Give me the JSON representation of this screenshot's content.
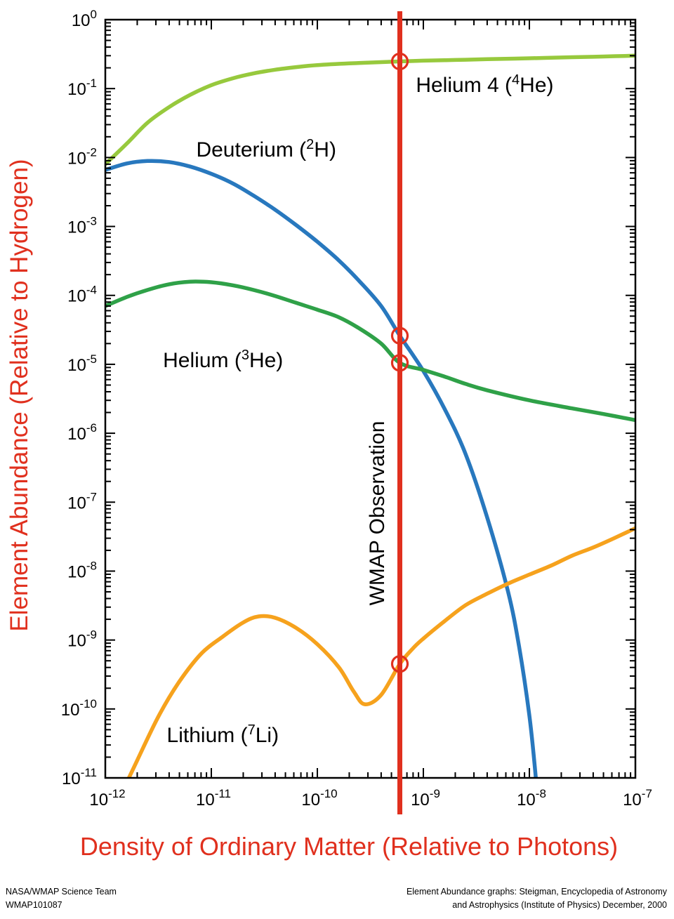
{
  "chart_data": {
    "type": "line",
    "title": "",
    "xlabel": "Density of Ordinary Matter (Relative to Photons)",
    "ylabel": "Element Abundance (Relative to Hydrogen)",
    "axis_label_color": "#e0301e",
    "x_scale": "log",
    "y_scale": "log",
    "xlim": [
      1e-12,
      1e-07
    ],
    "ylim": [
      1e-11,
      1
    ],
    "grid": false,
    "legend": "inline-labels",
    "x_tick_exponents": [
      -12,
      -11,
      -10,
      -9,
      -8,
      -7
    ],
    "y_tick_exponents": [
      0,
      -1,
      -2,
      -3,
      -4,
      -5,
      -6,
      -7,
      -8,
      -9,
      -10,
      -11
    ],
    "series": [
      {
        "id": "helium-4",
        "name": "Helium 4 (4He)",
        "color": "#97c93d",
        "points": [
          [
            1e-12,
            0.008
          ],
          [
            1.6e-12,
            0.016
          ],
          [
            2.5e-12,
            0.032
          ],
          [
            4e-12,
            0.054
          ],
          [
            6.3e-12,
            0.081
          ],
          [
            1e-11,
            0.112
          ],
          [
            1.6e-11,
            0.141
          ],
          [
            2.5e-11,
            0.166
          ],
          [
            4e-11,
            0.188
          ],
          [
            6.3e-11,
            0.205
          ],
          [
            1e-10,
            0.219
          ],
          [
            2e-10,
            0.232
          ],
          [
            4e-10,
            0.242
          ],
          [
            6e-10,
            0.248
          ],
          [
            1e-09,
            0.254
          ],
          [
            2e-09,
            0.26
          ],
          [
            4e-09,
            0.267
          ],
          [
            1e-08,
            0.275
          ],
          [
            2.5e-08,
            0.285
          ],
          [
            5e-08,
            0.292
          ],
          [
            1e-07,
            0.3
          ]
        ]
      },
      {
        "id": "deuterium",
        "name": "Deuterium (2H)",
        "color": "#2878be",
        "points": [
          [
            1e-12,
            0.0066
          ],
          [
            1.6e-12,
            0.0082
          ],
          [
            2.5e-12,
            0.0089
          ],
          [
            4e-12,
            0.0086
          ],
          [
            6.3e-12,
            0.0074
          ],
          [
            1e-11,
            0.0058
          ],
          [
            1.6e-11,
            0.0042
          ],
          [
            2.5e-11,
            0.0028
          ],
          [
            4e-11,
            0.00175
          ],
          [
            6.3e-11,
            0.00105
          ],
          [
            1e-10,
            0.0006
          ],
          [
            1.6e-10,
            0.00032
          ],
          [
            2.5e-10,
            0.00016
          ],
          [
            4e-10,
            7e-05
          ],
          [
            6e-10,
            2.6e-05
          ],
          [
            1e-09,
            8e-06
          ],
          [
            1.6e-09,
            2.2e-06
          ],
          [
            2.5e-09,
            5e-07
          ],
          [
            4e-09,
            6e-08
          ],
          [
            6.3e-09,
            5e-09
          ],
          [
            8e-09,
            8e-10
          ],
          [
            1e-08,
            8e-11
          ],
          [
            1.15e-08,
            1e-11
          ],
          [
            1.3e-08,
            1e-12
          ]
        ]
      },
      {
        "id": "helium-3",
        "name": "Helium 3 (3He)",
        "color": "#2fa148",
        "points": [
          [
            1e-12,
            7e-05
          ],
          [
            1.6e-12,
            9.5e-05
          ],
          [
            2.5e-12,
            0.00012
          ],
          [
            4e-12,
            0.000145
          ],
          [
            6.3e-12,
            0.000158
          ],
          [
            1e-11,
            0.000155
          ],
          [
            1.6e-11,
            0.00014
          ],
          [
            2.5e-11,
            0.00012
          ],
          [
            4e-11,
            9.8e-05
          ],
          [
            6.3e-11,
            7.8e-05
          ],
          [
            1e-10,
            6.2e-05
          ],
          [
            1.6e-10,
            4.8e-05
          ],
          [
            2.5e-10,
            3.3e-05
          ],
          [
            4e-10,
            2e-05
          ],
          [
            6e-10,
            1.05e-05
          ],
          [
            1e-09,
            8.3e-06
          ],
          [
            1.6e-09,
            6.6e-06
          ],
          [
            2.5e-09,
            5.2e-06
          ],
          [
            4e-09,
            4.2e-06
          ],
          [
            1e-08,
            3e-06
          ],
          [
            2.5e-08,
            2.3e-06
          ],
          [
            5e-08,
            1.9e-06
          ],
          [
            1e-07,
            1.55e-06
          ]
        ]
      },
      {
        "id": "lithium-7",
        "name": "Lithium 7 (7Li)",
        "color": "#f6a21d",
        "points": [
          [
            1.26e-12,
            4e-12
          ],
          [
            2e-12,
            1.8e-11
          ],
          [
            3.2e-12,
            8e-11
          ],
          [
            5e-12,
            2.5e-10
          ],
          [
            8e-12,
            6.3e-10
          ],
          [
            1.26e-11,
            1.1e-09
          ],
          [
            2e-11,
            1.8e-09
          ],
          [
            2.8e-11,
            2.2e-09
          ],
          [
            4e-11,
            2.1e-09
          ],
          [
            6.3e-11,
            1.5e-09
          ],
          [
            1e-10,
            8.7e-10
          ],
          [
            1.6e-10,
            4e-10
          ],
          [
            2.2e-10,
            1.8e-10
          ],
          [
            2.8e-10,
            1.17e-10
          ],
          [
            4e-10,
            1.6e-10
          ],
          [
            6e-10,
            4.5e-10
          ],
          [
            8e-10,
            7.6e-10
          ],
          [
            1e-09,
            1.05e-09
          ],
          [
            1.6e-09,
            1.9e-09
          ],
          [
            2.5e-09,
            3.2e-09
          ],
          [
            4e-09,
            4.7e-09
          ],
          [
            6.3e-09,
            6.6e-09
          ],
          [
            1e-08,
            8.9e-09
          ],
          [
            1.6e-08,
            1.2e-08
          ],
          [
            2.5e-08,
            1.66e-08
          ],
          [
            4e-08,
            2.2e-08
          ],
          [
            6.3e-08,
            3e-08
          ],
          [
            1e-07,
            4.2e-08
          ]
        ]
      }
    ],
    "wmap": {
      "x": 6e-10,
      "color": "#e0301e",
      "markers": [
        [
          6e-10,
          0.248
        ],
        [
          6e-10,
          2.6e-05
        ],
        [
          6e-10,
          1.05e-05
        ],
        [
          6e-10,
          4.5e-10
        ]
      ]
    },
    "curve_labels": [
      {
        "pre": "Helium 4 (",
        "sup": "4",
        "post": "He)",
        "x": 8.5e-10,
        "y": 0.11
      },
      {
        "pre": "Deuterium (",
        "sup": "2",
        "post": "H)",
        "x": 7.2e-12,
        "y": 0.0129
      },
      {
        "pre": "Helium (",
        "sup": "3",
        "post": "He)",
        "x": 3.5e-12,
        "y": 1.12e-05
      },
      {
        "pre": "Lithium (",
        "sup": "7",
        "post": "Li)",
        "x": 3.8e-12,
        "y": 4.1e-11
      },
      {
        "pre": "WMAP Observation",
        "sup": "",
        "post": "",
        "x": 3.7e-10,
        "y": 6.9e-08,
        "rotate": -90
      }
    ]
  },
  "footer": {
    "left_line1": "NASA/WMAP Science Team",
    "left_line2": "WMAP101087",
    "right_line1": "Element Abundance graphs: Steigman, Encyclopedia of Astronomy",
    "right_line2": "and Astrophysics (Institute of Physics) December, 2000"
  }
}
